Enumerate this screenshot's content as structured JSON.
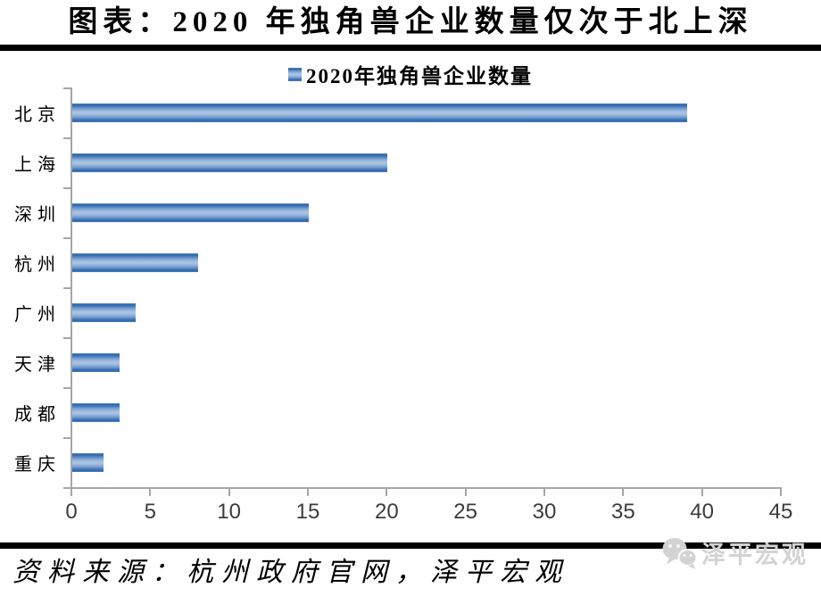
{
  "title": "图表：2020 年独角兽企业数量仅次于北上深",
  "legend": {
    "label": "2020年独角兽企业数量"
  },
  "chart_data": {
    "type": "bar",
    "orientation": "horizontal",
    "title": "图表：2020 年独角兽企业数量仅次于北上深",
    "series_name": "2020年独角兽企业数量",
    "categories": [
      "北京",
      "上海",
      "深圳",
      "杭州",
      "广州",
      "天津",
      "成都",
      "重庆"
    ],
    "values": [
      39,
      20,
      15,
      8,
      4,
      3,
      3,
      2
    ],
    "xlim": [
      0,
      45
    ],
    "xticks": [
      0,
      5,
      10,
      15,
      20,
      25,
      30,
      35,
      40,
      45
    ],
    "grid": false,
    "legend_position": "top-center",
    "bar_color_dark": "#2f66ae",
    "bar_color_mid": "#4f81bd",
    "bar_color_light": "#a8c2e2"
  },
  "footer": {
    "source": "资料来源：杭州政府官网，泽平宏观",
    "logo_text": "泽平宏观",
    "logo_icon": "wechat-icon"
  },
  "colors": {
    "axis": "#a6a6a6",
    "tick_label": "#3c3c3c",
    "text": "#000000",
    "rule": "#000000",
    "logo_gray": "#d3d3d3",
    "background": "#ffffff"
  }
}
